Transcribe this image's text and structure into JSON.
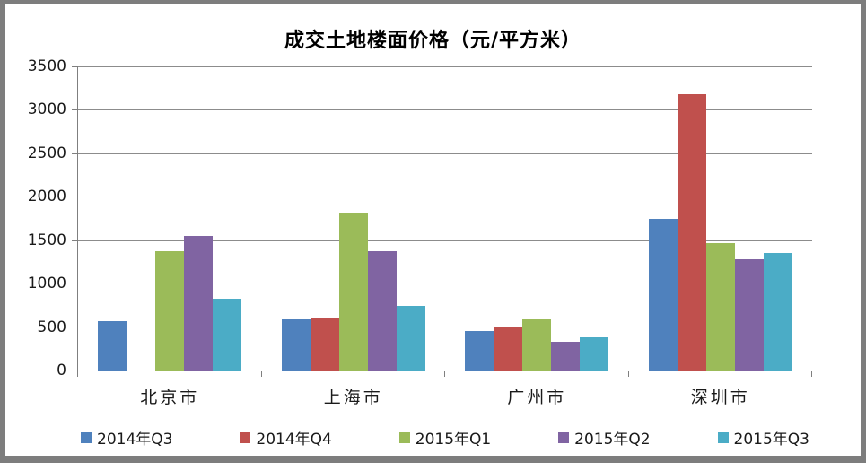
{
  "chart_data": {
    "type": "bar",
    "title": "成交土地楼面价格（元/平方米）",
    "categories": [
      "北京市",
      "上海市",
      "广州市",
      "深圳市"
    ],
    "series": [
      {
        "name": "2014年Q3",
        "color": "#4F81BD",
        "values": [
          570,
          590,
          450,
          1750
        ]
      },
      {
        "name": "2014年Q4",
        "color": "#C0504D",
        "values": [
          0,
          605,
          510,
          3180
        ]
      },
      {
        "name": "2015年Q1",
        "color": "#9BBB59",
        "values": [
          1370,
          1820,
          600,
          1470
        ]
      },
      {
        "name": "2015年Q2",
        "color": "#8064A2",
        "values": [
          1550,
          1370,
          330,
          1280
        ]
      },
      {
        "name": "2015年Q3",
        "color": "#4BACC6",
        "values": [
          830,
          740,
          380,
          1350
        ]
      }
    ],
    "ylim": [
      0,
      3500
    ],
    "yticks": [
      0,
      500,
      1000,
      1500,
      2000,
      2500,
      3000,
      3500
    ],
    "xlabel": "",
    "ylabel": "",
    "grid": true,
    "legend_position": "bottom",
    "gridline_color": "#8c8c8c",
    "axis_color": "#7f7f7f",
    "frame_color": "#7d7d7d"
  }
}
